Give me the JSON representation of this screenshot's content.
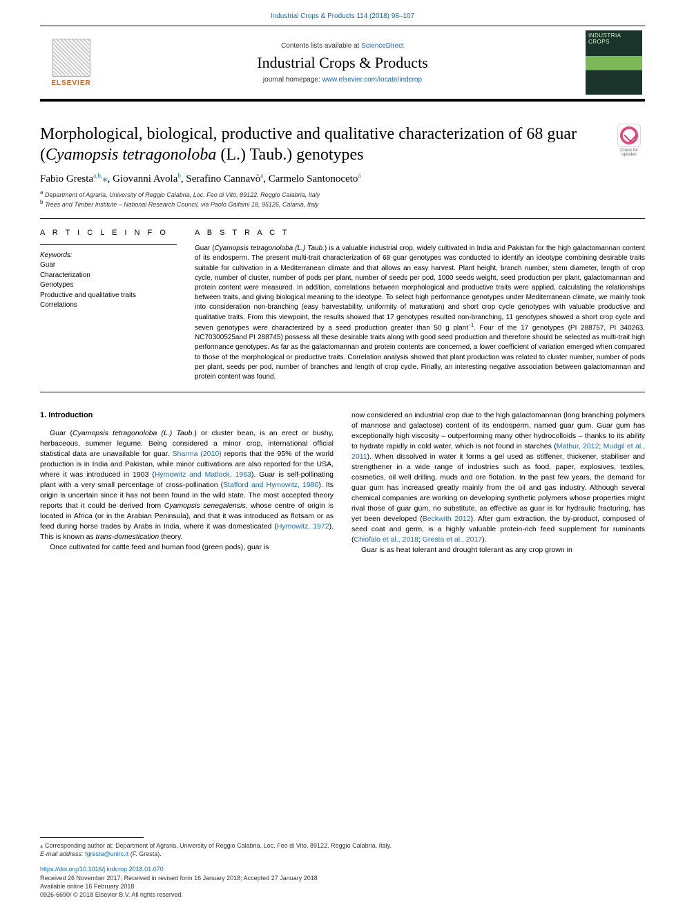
{
  "journal_ref_line": "Industrial Crops & Products 114 (2018) 98–107",
  "header": {
    "contents_prefix": "Contents lists available at ",
    "contents_link": "ScienceDirect",
    "journal_title": "Industrial Crops & Products",
    "homepage_prefix": "journal homepage: ",
    "homepage_link": "www.elsevier.com/locate/indcrop",
    "elsevier_word": "ELSEVIER",
    "cover_label_top": "INDUSTRIA",
    "cover_label_mid": "CROPS"
  },
  "check_updates_label": "Check for updates",
  "title_parts": {
    "prefix": "Morphological, biological, productive and qualitative characterization of 68 guar (",
    "species": "Cyamopsis tetragonoloba",
    "suffix": " (L.) Taub.) genotypes"
  },
  "authors_html": "Fabio Gresta<sup>a,b,</sup><span class=\"aff-star\">⁎</span>, Giovanni Avola<sup>b</sup>, Serafino Cannavò<sup>a</sup>, Carmelo Santonoceto<sup>a</sup>",
  "affiliations": [
    {
      "label": "a",
      "text": "Department of Agraria, University of Reggio Calabria, Loc. Feo di Vito, 89122, Reggio Calabria, Italy"
    },
    {
      "label": "b",
      "text": "Trees and Timber Institute – National Research Council, via Paolo Gaifami 18, 95126, Catania, Italy"
    }
  ],
  "article_info_head": "A R T I C L E  I N F O",
  "abstract_head": "A B S T R A C T",
  "keywords_label": "Keywords:",
  "keywords": [
    "Guar",
    "Characterization",
    "Genotypes",
    "Productive and qualitative traits",
    "Correlations"
  ],
  "abstract_html": "Guar (<span class=\"ital\">Cyamopsis tetragonoloba (L.) Taub.</span>) is a valuable industrial crop, widely cultivated in India and Pakistan for the high galactomannan content of its endosperm. The present multi-trait characterization of 68 guar genotypes was conducted to identify an ideotype combining desirable traits suitable for cultivation in a Mediterranean climate and that allows an easy harvest. Plant height, branch number, stem diameter, length of crop cycle, number of cluster, number of pods per plant, number of seeds per pod, 1000 seeds weight, seed production per plant, galactomannan and protein content were measured. In addition, correlations between morphological and productive traits were applied, calculating the relationships between traits, and giving biological meaning to the ideotype. To select high performance genotypes under Mediterranean climate, we mainly took into consideration non-branching (easy harvestability, uniformity of maturation) and short crop cycle genotypes with valuable productive and qualitative traits. From this viewpoint, the results showed that 17 genotypes resulted non-branching, 11 genotypes showed a short crop cycle and seven genotypes were characterized by a seed production greater than 50 g plant<sup>−1</sup>. Four of the 17 genotypes (PI 288757, PI 340263, NC70300525and PI 288745) possess all these desirable traits along with good seed production and therefore should be selected as multi-trait high performance genotypes. As far as the galactomannan and protein contents are concerned, a lower coefficient of variation emerged when compared to those of the morphological or productive traits. Correlation analysis showed that plant production was related to cluster number, number of pods per plant, seeds per pod, number of branches and length of crop cycle. Finally, an interesting negative association between galactomannan and protein content was found.",
  "section1_head": "1. Introduction",
  "body_left_html": "Guar (<span class=\"ital\">Cyamopsis tetragonoloba (L.) Taub.</span>) or cluster bean, is an erect or bushy, herbaceous, summer legume. Being considered a minor crop, international official statistical data are unavailable for guar. <span class=\"cite\">Sharma (2010)</span> reports that the 95% of the world production is in India and Pakistan, while minor cultivations are also reported for the USA, where it was introduced in 1903 (<span class=\"cite\">Hymowitz and Matlock, 1963</span>). Guar is self-pollinating plant with a very small percentage of cross-pollination (<span class=\"cite\">Stafford and Hymowitz, 1980</span>). Its origin is uncertain since it has not been found in the wild state. The most accepted theory reports that it could be derived from <span class=\"ital\">Cyamopsis senegalensis</span>, whose centre of origin is located in Africa (or in the Arabian Peninsula), and that it was introduced as flotsam or as feed during horse trades by Arabs in India, where it was domesticated (<span class=\"cite\">Hymowitz, 1972</span>). This is known as <span class=\"ital\">trans-domestication</span> theory.",
  "body_left_p2": "Once cultivated for cattle feed and human food (green pods), guar is",
  "body_right_html": "now considered an industrial crop due to the high galactomannan (long branching polymers of mannose and galactose) content of its endosperm, named guar gum. Guar gum has exceptionally high viscosity – outperforming many other hydrocolloids – thanks to its ability to hydrate rapidly in cold water, which is not found in starches (<span class=\"cite\">Mathur, 2012</span>; <span class=\"cite\">Mudgil et al., 2011</span>). When dissolved in water it forms a gel used as stiffener, thickener, stabiliser and strengthener in a wide range of industries such as food, paper, explosives, textiles, cosmetics, oil well drilling, muds and ore flotation. In the past few years, the demand for guar gum has increased greatly mainly from the oil and gas industry. Although several chemical companies are working on developing synthetic polymers whose properties might rival those of guar gum, no substitute, as effective as guar is for hydraulic fracturing, has yet been developed (<span class=\"cite\">Beckwith 2012</span>). After gum extraction, the by-product, composed of seed coat and germ, is a highly valuable protein-rich feed supplement for ruminants (<span class=\"cite\">Chiofalo et al., 2018</span>; <span class=\"cite\">Gresta et al., 2017</span>).",
  "body_right_p2": "Guar is as heat tolerant and drought tolerant as any crop grown in",
  "footer": {
    "corr_text": "⁎ Corresponding author at: Department of Agraria, University of Reggio Calabria, Loc. Feo di Vito, 89122, Reggio Calabria, Italy.",
    "email_label": "E-mail address:",
    "email": "fgresta@unirc.it",
    "email_paren": "(F. Gresta).",
    "doi": "https://doi.org/10.1016/j.indcrop.2018.01.070",
    "received": "Received 26 November 2017; Received in revised form 16 January 2018; Accepted 27 January 2018",
    "available": "Available online 16 February 2018",
    "copyright": "0926-6690/ © 2018 Elsevier B.V. All rights reserved."
  },
  "colors": {
    "link": "#1768b3",
    "elsevier_orange": "#e55d10",
    "text": "#000000"
  }
}
